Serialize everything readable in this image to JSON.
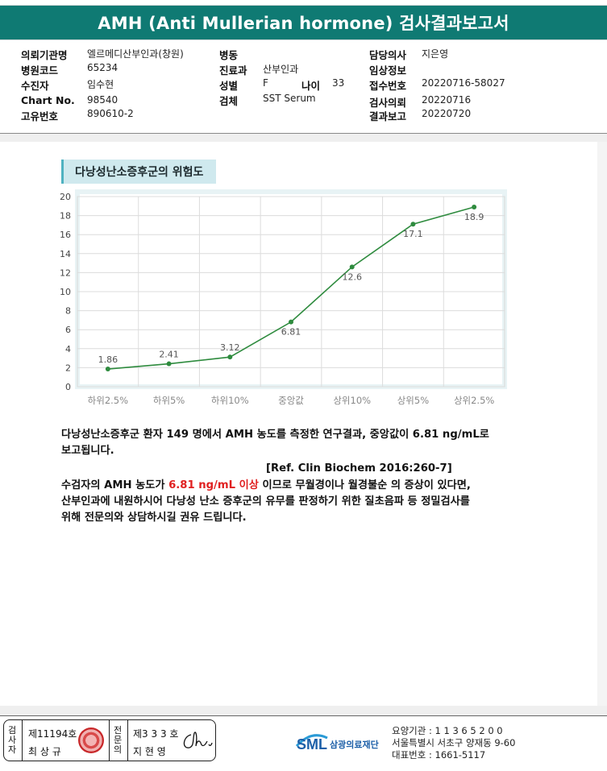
{
  "report": {
    "title": "AMH (Anti Mullerian hormone) 검사결과보고서"
  },
  "patient_info": {
    "col1": [
      {
        "label": "의뢰기관명",
        "value": "엘르메디산부인과(창원)"
      },
      {
        "label": "병원코드",
        "value": "65234"
      },
      {
        "label": "수진자",
        "value": "임수현"
      },
      {
        "label": "Chart No.",
        "value": "98540"
      },
      {
        "label": "고유번호",
        "value": "890610-2"
      }
    ],
    "col2": [
      {
        "label": "병동",
        "value": ""
      },
      {
        "label": "진료과",
        "value": "산부인과"
      },
      {
        "label": "성별",
        "value": "F"
      },
      {
        "label": "검체",
        "value": "SST Serum"
      }
    ],
    "age": {
      "label": "나이",
      "value": "33"
    },
    "col3": [
      {
        "label": "담당의사",
        "value": "지은영"
      },
      {
        "label": "임상정보",
        "value": ""
      },
      {
        "label": "접수번호",
        "value": "20220716-58027"
      },
      {
        "label": "검사의뢰",
        "value": "20220716"
      },
      {
        "label": "결과보고",
        "value": "20220720"
      }
    ]
  },
  "chart_section": {
    "heading": "다낭성난소증후군의 위험도"
  },
  "chart_data": {
    "type": "line",
    "categories": [
      "하위2.5%",
      "하위5%",
      "하위10%",
      "중앙값",
      "상위10%",
      "상위5%",
      "상위2.5%"
    ],
    "values": [
      1.86,
      2.41,
      3.12,
      6.81,
      12.6,
      17.1,
      18.9
    ],
    "data_labels": [
      "1.86",
      "2.41",
      "3.12",
      "6.81",
      "12.6",
      "17.1",
      "18.9"
    ],
    "ylim": [
      0,
      20
    ],
    "yticks": [
      0,
      2,
      4,
      6,
      8,
      10,
      12,
      14,
      16,
      18,
      20
    ],
    "grid": true,
    "line_color": "#2e8b3e"
  },
  "text": {
    "para1_line1": "다낭성난소증후군 환자 149 명에서 AMH 농도를 측정한 연구결과, 중앙값이 6.81 ng/mL로",
    "para1_line2": "보고됩니다.",
    "reference": "[Ref. Clin Biochem 2016:260-7]",
    "para2_prefix": "수검자의 AMH 농도가 ",
    "para2_highlight": "6.81 ng/mL 이상",
    "para2_suffix": " 이므로 무월경이나 월경불순 의 증상이 있다면,",
    "para2_line2": "산부인과에 내원하시어 다낭성 난소 증후군의 유무를 판정하기 위한 질초음파 등 정밀검사를",
    "para2_line3": "위해 전문의와 상담하시길 권유 드립니다.",
    "highlight_color": "#e02020"
  },
  "footer": {
    "inspector_label": "검사자",
    "inspector_no": "제11194호",
    "inspector_name": "최 상 규",
    "specialist_label": "전문의",
    "specialist_no": "제3 3 3 호",
    "specialist_name": "지 현 영",
    "logo_text": "SML",
    "org_name": "삼광의료재단",
    "org_line1": "요양기관 : 1 1 3 6 5 2 0 0",
    "org_line2": "서울특별시 서초구 양재동 9-60",
    "org_line3": "대표번호 : 1661-5117"
  }
}
